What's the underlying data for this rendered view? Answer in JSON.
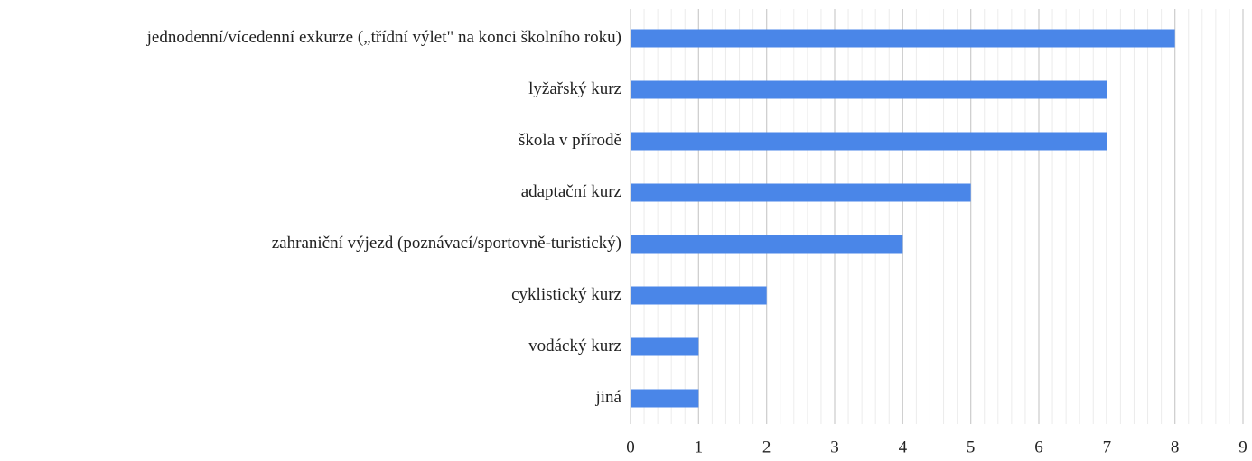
{
  "chart_data": {
    "type": "barh",
    "categories": [
      "jednodenní/vícedenní exkurze („třídní výlet\" na konci školního roku)",
      "lyžařský kurz",
      "škola v přírodě",
      "adaptační kurz",
      "zahraniční výjezd (poznávací/sportovně-turistický)",
      "cyklistický kurz",
      "vodácký kurz",
      "jiná"
    ],
    "values": [
      8,
      7,
      7,
      5,
      4,
      2,
      1,
      1
    ],
    "color": "#4a86e8",
    "xlim": [
      0,
      9
    ],
    "xticks": [
      0,
      1,
      2,
      3,
      4,
      5,
      6,
      7,
      8,
      9
    ],
    "grid": true,
    "minor_grid_divisions": 5
  }
}
